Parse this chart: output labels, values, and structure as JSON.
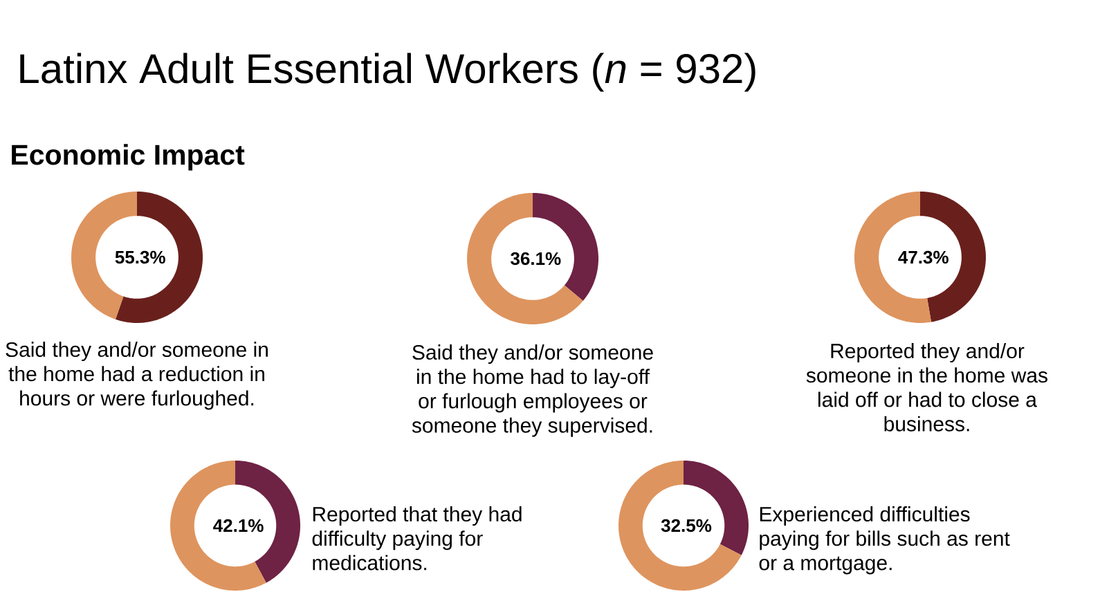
{
  "chart_data": [
    {
      "type": "donut",
      "title": "Latinx Adult Essential Workers (*n* = 932)",
      "subtitle": "Economic Impact",
      "categories": [
        null,
        null
      ],
      "values": [
        55.3,
        44.7
      ],
      "colors": [
        "#69201c",
        "#de945e"
      ],
      "value_labels": [
        "55.3%",
        null
      ],
      "annotations": [
        "Said they and/or someone in the home had a reduction in hours or were furloughed."
      ]
    },
    {
      "type": "donut",
      "categories": [
        null,
        null
      ],
      "values": [
        36.1,
        63.9
      ],
      "colors": [
        "#6e2244",
        "#de945e"
      ],
      "value_labels": [
        "36.1%",
        null
      ],
      "annotations": [
        "Said they and/or someone in the home had to lay-off or furlough employees or someone they supervised."
      ]
    },
    {
      "type": "donut",
      "categories": [
        null,
        null
      ],
      "values": [
        47.3,
        52.7
      ],
      "colors": [
        "#69201c",
        "#de945e"
      ],
      "value_labels": [
        "47.3%",
        null
      ],
      "annotations": [
        "Reported they and/or someone in the home was laid off or had to close a business."
      ]
    },
    {
      "type": "donut",
      "categories": [
        null,
        null
      ],
      "values": [
        42.1,
        57.9
      ],
      "colors": [
        "#6e2244",
        "#de945e"
      ],
      "value_labels": [
        "42.1%",
        null
      ],
      "annotations": [
        "Reported that they had difficulty paying for medications."
      ]
    },
    {
      "type": "donut",
      "categories": [
        null,
        null
      ],
      "values": [
        32.5,
        67.5
      ],
      "colors": [
        "#6e2244",
        "#de945e"
      ],
      "value_labels": [
        "32.5%",
        null
      ],
      "annotations": [
        "Experienced difficulties paying for bills such as rent or a mortgage."
      ]
    }
  ]
}
